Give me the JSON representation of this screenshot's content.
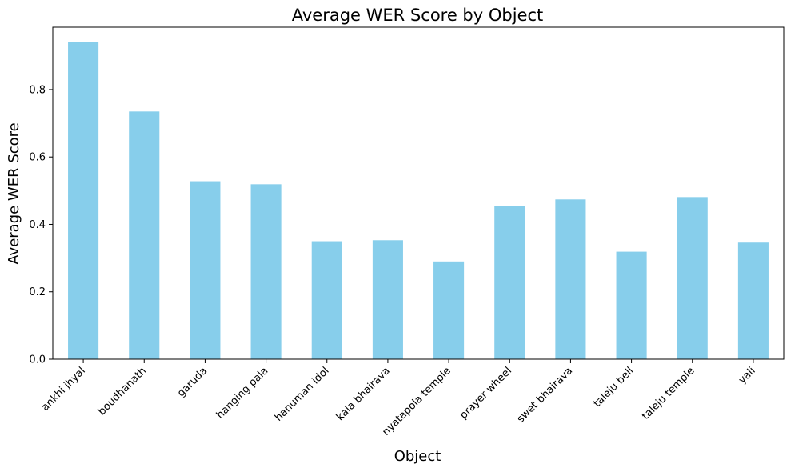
{
  "chart_data": {
    "type": "bar",
    "title": "Average WER Score by Object",
    "xlabel": "Object",
    "ylabel": "Average WER Score",
    "categories": [
      "ankhi jhyal",
      "boudhanath",
      "garuda",
      "hanging pala",
      "hanuman idol",
      "kala bhairava",
      "nyatapola temple",
      "prayer wheel",
      "swet bhairava",
      "taleju bell",
      "taleju temple",
      "yali"
    ],
    "values": [
      0.94,
      0.735,
      0.528,
      0.519,
      0.35,
      0.353,
      0.29,
      0.455,
      0.474,
      0.319,
      0.481,
      0.346
    ],
    "ylim": [
      0,
      0.985
    ],
    "yticks": [
      0.0,
      0.2,
      0.4,
      0.6,
      0.8
    ],
    "ytick_labels": [
      "0.0",
      "0.2",
      "0.4",
      "0.6",
      "0.8"
    ],
    "bar_color": "#87ceeb",
    "grid": false
  }
}
